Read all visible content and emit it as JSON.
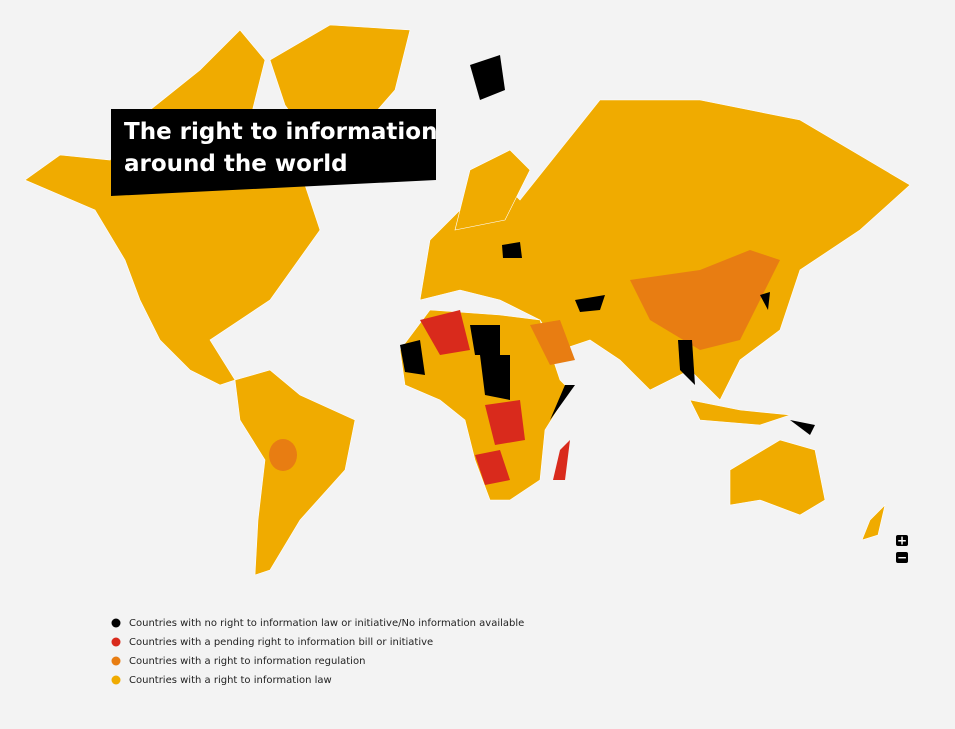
{
  "header": {
    "title_lines": [
      "The right to information",
      "around the world"
    ]
  },
  "legend": [
    {
      "label": "Countries with no right to information law or initiative/No information available",
      "color": "#000000"
    },
    {
      "label": "Countries with a pending right to information bill or initiative",
      "color": "#d92a1c"
    },
    {
      "label": "Countries with a right to information regulation",
      "color": "#e87d12"
    },
    {
      "label": "Countries with a right to information law",
      "color": "#f0ab00"
    }
  ],
  "zoom_controls": [
    "+",
    "−"
  ]
}
